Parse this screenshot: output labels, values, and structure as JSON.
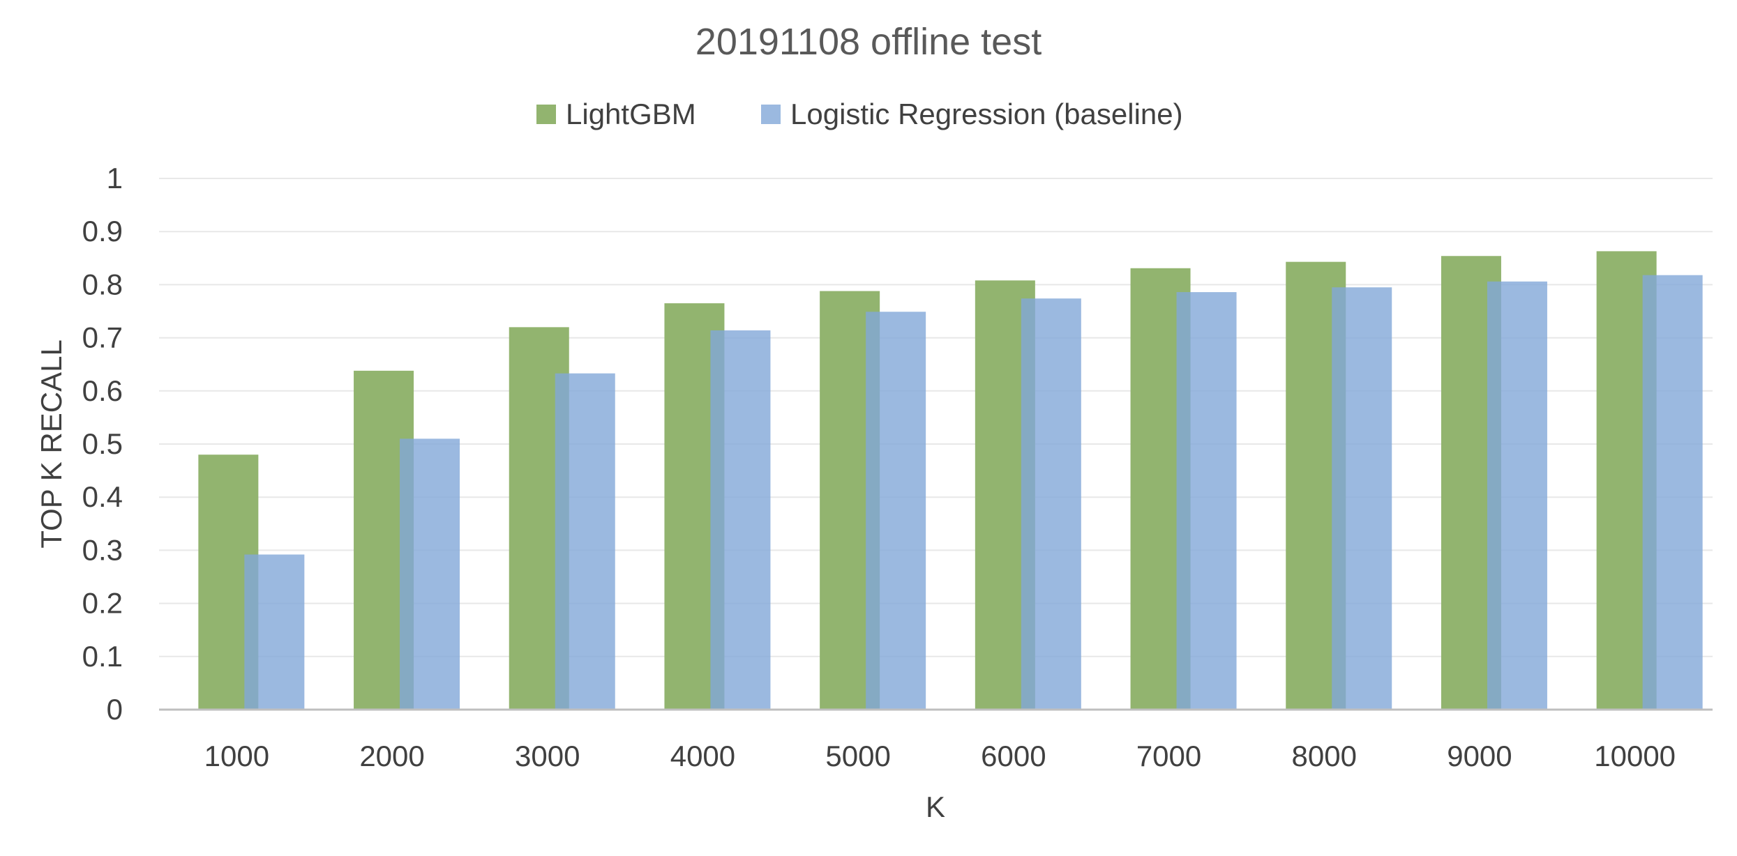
{
  "chart_data": {
    "type": "bar",
    "title": "20191108 offline test",
    "xlabel": "K",
    "ylabel": "TOP K RECALL",
    "categories": [
      "1000",
      "2000",
      "3000",
      "4000",
      "5000",
      "6000",
      "7000",
      "8000",
      "9000",
      "10000"
    ],
    "series": [
      {
        "name": "LightGBM",
        "color": "#92b46f",
        "values": [
          0.48,
          0.638,
          0.72,
          0.765,
          0.788,
          0.808,
          0.831,
          0.843,
          0.854,
          0.863
        ]
      },
      {
        "name": "Logistic Regression (baseline)",
        "color": "#82a8d8",
        "values": [
          0.292,
          0.51,
          0.633,
          0.714,
          0.749,
          0.774,
          0.786,
          0.795,
          0.806,
          0.818
        ]
      }
    ],
    "yticks": [
      "0",
      "0.1",
      "0.2",
      "0.3",
      "0.4",
      "0.5",
      "0.6",
      "0.7",
      "0.8",
      "0.9",
      "1"
    ],
    "ylim": [
      0,
      1
    ],
    "grid": true,
    "legend_position": "top"
  }
}
